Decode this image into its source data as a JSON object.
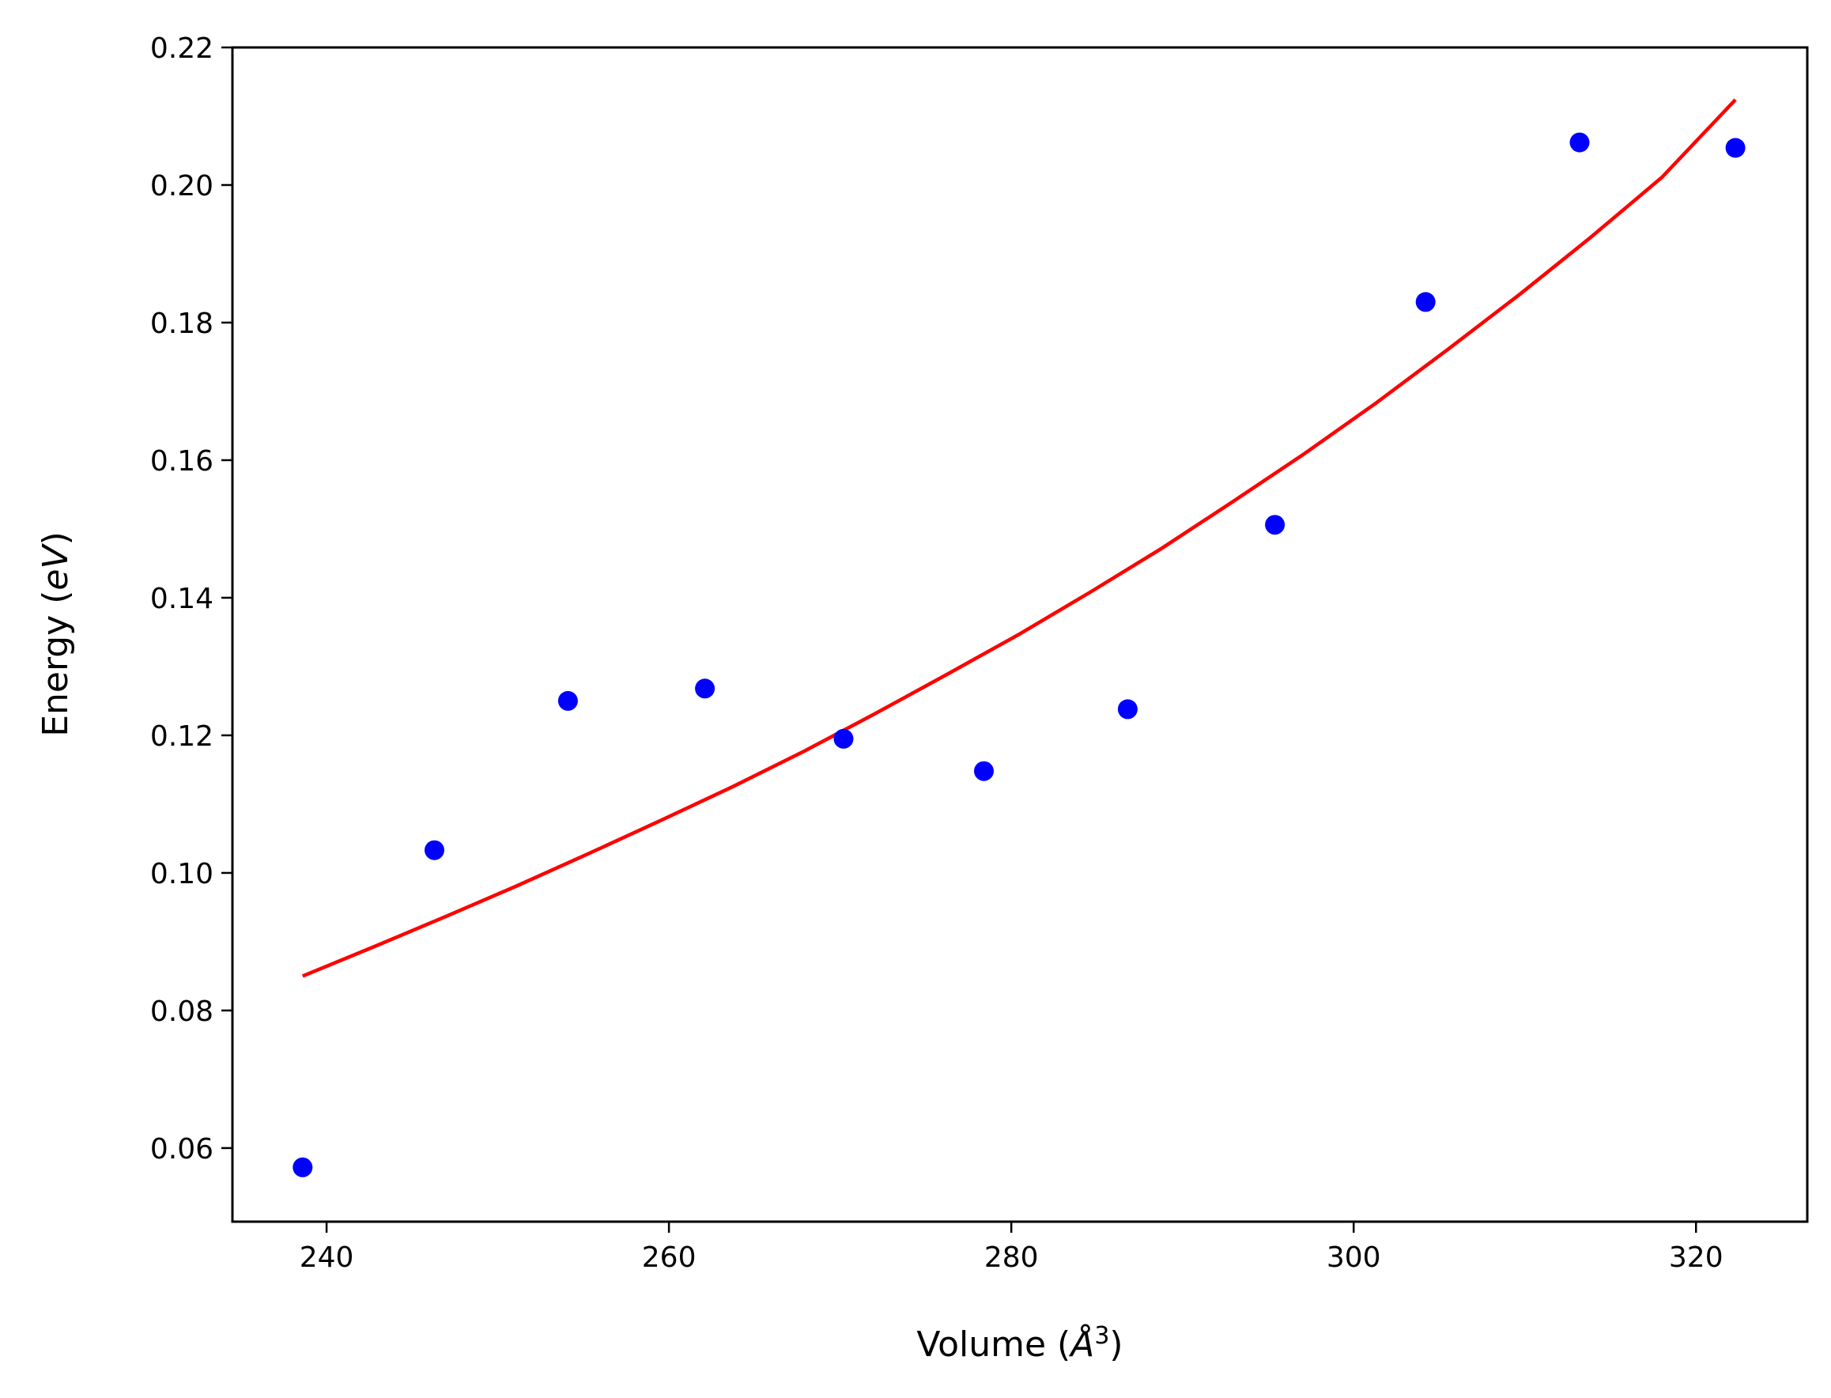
{
  "chart_data": {
    "type": "scatter",
    "xlabel": {
      "prefix": "Volume (",
      "var": "Å",
      "sup": "3",
      "suffix": ")"
    },
    "ylabel": {
      "prefix": "Energy (",
      "var": "eV",
      "suffix": ")"
    },
    "xlim": [
      234.5,
      326.5
    ],
    "ylim": [
      0.0493,
      0.22
    ],
    "xticks": [
      240,
      260,
      280,
      300,
      320
    ],
    "xtick_labels": [
      "240",
      "260",
      "280",
      "300",
      "320"
    ],
    "yticks": [
      0.06,
      0.08,
      0.1,
      0.12,
      0.14,
      0.16,
      0.18,
      0.2,
      0.22
    ],
    "ytick_labels": [
      "0.06",
      "0.08",
      "0.10",
      "0.12",
      "0.14",
      "0.16",
      "0.18",
      "0.20",
      "0.22"
    ],
    "grid": false,
    "series": [
      {
        "kind": "points",
        "color": "#0000ff",
        "x": [
          238.6,
          246.3,
          254.1,
          262.1,
          270.2,
          278.4,
          286.8,
          295.4,
          304.2,
          313.2,
          322.3
        ],
        "y": [
          0.0572,
          0.1033,
          0.125,
          0.1268,
          0.1195,
          0.1148,
          0.1238,
          0.1506,
          0.183,
          0.2062,
          0.2054
        ]
      },
      {
        "kind": "line",
        "color": "#ff0000",
        "x": [
          238.6,
          242.8,
          247.0,
          251.1,
          255.3,
          259.5,
          263.7,
          267.9,
          272.0,
          276.2,
          280.4,
          284.6,
          288.8,
          292.9,
          297.1,
          301.3,
          305.5,
          309.7,
          313.8,
          318.0,
          322.3
        ],
        "y": [
          0.085,
          0.0893,
          0.0937,
          0.0981,
          0.1028,
          0.1076,
          0.1125,
          0.1177,
          0.1231,
          0.1288,
          0.1346,
          0.1408,
          0.1472,
          0.1539,
          0.1609,
          0.1683,
          0.1761,
          0.1841,
          0.1923,
          0.2011,
          0.2124
        ]
      }
    ]
  }
}
